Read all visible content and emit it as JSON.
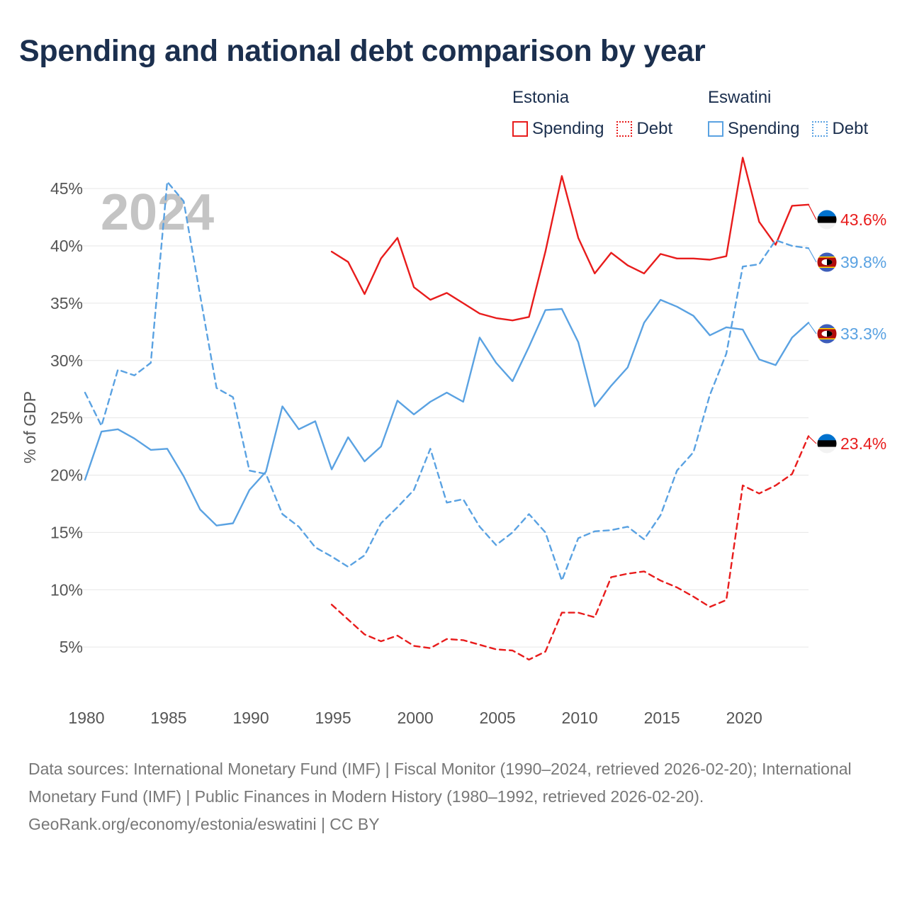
{
  "title": "Spending and national debt comparison by year",
  "legend": [
    {
      "country": "Estonia",
      "color": "#e81c1c",
      "items": [
        {
          "label": "Spending",
          "style": "solid"
        },
        {
          "label": "Debt",
          "style": "dotted"
        }
      ]
    },
    {
      "country": "Eswatini",
      "color": "#5aa2e2",
      "items": [
        {
          "label": "Spending",
          "style": "solid"
        },
        {
          "label": "Debt",
          "style": "dotted"
        }
      ]
    }
  ],
  "chart_data": {
    "type": "line",
    "watermark_year": "2024",
    "ylabel": "% of GDP",
    "ylim": [
      0,
      46
    ],
    "xlim": [
      1980,
      2024
    ],
    "yticks": [
      5,
      10,
      15,
      20,
      25,
      30,
      35,
      40,
      45
    ],
    "ytick_labels": [
      "5%",
      "10%",
      "15%",
      "20%",
      "25%",
      "30%",
      "35%",
      "40%",
      "45%"
    ],
    "xticks": [
      1980,
      1985,
      1990,
      1995,
      2000,
      2005,
      2010,
      2015,
      2020
    ],
    "xtick_labels": [
      "1980",
      "1985",
      "1990",
      "1995",
      "2000",
      "2005",
      "2010",
      "2015",
      "2020"
    ],
    "series": [
      {
        "name": "Estonia Spending",
        "country": "Estonia",
        "kind": "Spending",
        "color": "#e81c1c",
        "dash": false,
        "x": [
          1995,
          1996,
          1997,
          1998,
          1999,
          2000,
          2001,
          2002,
          2003,
          2004,
          2005,
          2006,
          2007,
          2008,
          2009,
          2010,
          2011,
          2012,
          2013,
          2014,
          2015,
          2016,
          2017,
          2018,
          2019,
          2020,
          2021,
          2022,
          2023,
          2024
        ],
        "values": [
          39.5,
          38.6,
          35.8,
          38.9,
          40.7,
          36.4,
          35.3,
          35.9,
          35.0,
          34.1,
          33.7,
          33.5,
          33.8,
          39.5,
          46.1,
          40.7,
          37.6,
          39.4,
          38.3,
          37.6,
          39.3,
          38.9,
          38.9,
          38.8,
          39.1,
          47.7,
          42.1,
          40.1,
          43.5,
          43.6
        ],
        "end_label": "43.6%"
      },
      {
        "name": "Estonia Debt",
        "country": "Estonia",
        "kind": "Debt",
        "color": "#e81c1c",
        "dash": true,
        "x": [
          1995,
          1996,
          1997,
          1998,
          1999,
          2000,
          2001,
          2002,
          2003,
          2004,
          2005,
          2006,
          2007,
          2008,
          2009,
          2010,
          2011,
          2012,
          2013,
          2014,
          2015,
          2016,
          2017,
          2018,
          2019,
          2020,
          2021,
          2022,
          2023,
          2024
        ],
        "values": [
          8.7,
          7.4,
          6.1,
          5.5,
          6.0,
          5.1,
          4.9,
          5.7,
          5.6,
          5.2,
          4.8,
          4.7,
          3.9,
          4.6,
          8.0,
          8.0,
          7.6,
          11.1,
          11.4,
          11.6,
          10.8,
          10.2,
          9.4,
          8.5,
          9.1,
          19.1,
          18.4,
          19.1,
          20.1,
          23.4
        ],
        "end_label": "23.4%"
      },
      {
        "name": "Eswatini Spending",
        "country": "Eswatini",
        "kind": "Spending",
        "color": "#5aa2e2",
        "dash": false,
        "x": [
          1980,
          1981,
          1982,
          1983,
          1984,
          1985,
          1986,
          1987,
          1988,
          1989,
          1990,
          1991,
          1992,
          1993,
          1994,
          1995,
          1996,
          1997,
          1998,
          1999,
          2000,
          2001,
          2002,
          2003,
          2004,
          2005,
          2006,
          2007,
          2008,
          2009,
          2010,
          2011,
          2012,
          2013,
          2014,
          2015,
          2016,
          2017,
          2018,
          2019,
          2020,
          2021,
          2022,
          2023,
          2024
        ],
        "values": [
          19.6,
          23.8,
          24.0,
          23.2,
          22.2,
          22.3,
          19.9,
          17.0,
          15.6,
          15.8,
          18.7,
          20.3,
          26.0,
          24.0,
          24.7,
          20.5,
          23.3,
          21.2,
          22.5,
          26.5,
          25.3,
          26.4,
          27.2,
          26.4,
          32.0,
          29.8,
          28.2,
          31.2,
          34.4,
          34.5,
          31.6,
          26.0,
          27.8,
          29.4,
          33.3,
          35.3,
          34.7,
          33.9,
          32.2,
          32.9,
          32.7,
          30.1,
          29.6,
          32.0,
          33.3
        ],
        "end_label": "33.3%"
      },
      {
        "name": "Eswatini Debt",
        "country": "Eswatini",
        "kind": "Debt",
        "color": "#5aa2e2",
        "dash": true,
        "x": [
          1980,
          1981,
          1982,
          1983,
          1984,
          1985,
          1986,
          1987,
          1988,
          1989,
          1990,
          1991,
          1992,
          1993,
          1994,
          1995,
          1996,
          1997,
          1998,
          1999,
          2000,
          2001,
          2002,
          2003,
          2004,
          2005,
          2006,
          2007,
          2008,
          2009,
          2010,
          2011,
          2012,
          2013,
          2014,
          2015,
          2016,
          2017,
          2018,
          2019,
          2020,
          2021,
          2022,
          2023,
          2024
        ],
        "values": [
          27.2,
          24.3,
          29.2,
          28.7,
          29.8,
          45.6,
          43.9,
          35.7,
          27.6,
          26.8,
          20.4,
          20.1,
          16.6,
          15.5,
          13.7,
          12.9,
          12.0,
          13.0,
          15.8,
          17.2,
          18.7,
          22.3,
          17.6,
          17.9,
          15.5,
          13.9,
          15.0,
          16.6,
          15.0,
          10.8,
          14.5,
          15.1,
          15.2,
          15.5,
          14.4,
          16.5,
          20.4,
          22.0,
          27.0,
          30.6,
          38.2,
          38.4,
          40.5,
          40.0,
          39.8
        ],
        "end_label": "39.8%"
      }
    ]
  },
  "footer": {
    "sources": "Data sources: International Monetary Fund (IMF) | Fiscal Monitor (1990–2024, retrieved 2026-02-20); International Monetary Fund (IMF) | Public Finances in Modern History (1980–1992, retrieved 2026-02-20).",
    "credit": "GeoRank.org/economy/estonia/eswatini | CC BY"
  }
}
